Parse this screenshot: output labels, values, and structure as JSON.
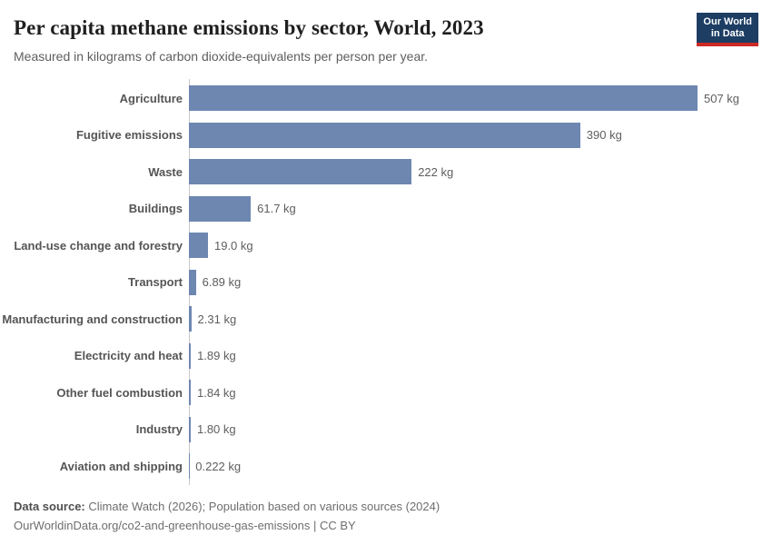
{
  "header": {
    "title": "Per capita methane emissions by sector, World, 2023",
    "subtitle": "Measured in kilograms of carbon dioxide-equivalents per person per year.",
    "logo": {
      "line1": "Our World",
      "line2": "in Data"
    }
  },
  "chart_data": {
    "type": "bar",
    "orientation": "horizontal",
    "title": "Per capita methane emissions by sector, World, 2023",
    "subtitle": "Measured in kilograms of carbon dioxide-equivalents per person per year.",
    "unit": "kg",
    "xlabel": "",
    "ylabel": "",
    "xlim": [
      0,
      507
    ],
    "grid": false,
    "legend": false,
    "bar_color": "#6e87b1",
    "categories": [
      "Agriculture",
      "Fugitive emissions",
      "Waste",
      "Buildings",
      "Land-use change and forestry",
      "Transport",
      "Manufacturing and construction",
      "Electricity and heat",
      "Other fuel combustion",
      "Industry",
      "Aviation and shipping"
    ],
    "values": [
      507,
      390,
      222,
      61.7,
      19.0,
      6.89,
      2.31,
      1.89,
      1.84,
      1.8,
      0.222
    ],
    "value_labels": [
      "507 kg",
      "390 kg",
      "222 kg",
      "61.7 kg",
      "19.0 kg",
      "6.89 kg",
      "2.31 kg",
      "1.89 kg",
      "1.84 kg",
      "1.80 kg",
      "0.222 kg"
    ]
  },
  "footer": {
    "source_label": "Data source:",
    "source_text": " Climate Watch (2026); Population based on various sources (2024)",
    "url_line": "OurWorldinData.org/co2-and-greenhouse-gas-emissions | CC BY"
  },
  "colors": {
    "bar": "#6e87b1",
    "logo_navy": "#1d3d63",
    "logo_red": "#cc2a25",
    "axis_line": "#c9c9c9",
    "title_text": "#1f1f1f",
    "label_text": "#555555",
    "value_text": "#5e5e5e"
  }
}
